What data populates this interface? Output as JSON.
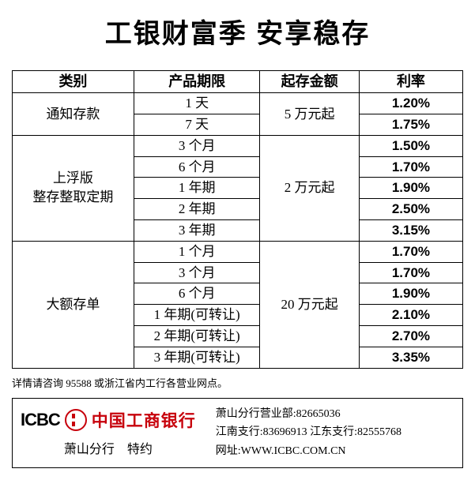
{
  "title": "工银财富季  安享稳存",
  "headers": [
    "类别",
    "产品期限",
    "起存金额",
    "利率"
  ],
  "groups": [
    {
      "category": "通知存款",
      "min_amount": "5 万元起",
      "rows": [
        {
          "term": "1 天",
          "rate": "1.20%"
        },
        {
          "term": "7 天",
          "rate": "1.75%"
        }
      ]
    },
    {
      "category": "上浮版\n整存整取定期",
      "min_amount": "2 万元起",
      "rows": [
        {
          "term": "3 个月",
          "rate": "1.50%"
        },
        {
          "term": "6 个月",
          "rate": "1.70%"
        },
        {
          "term": "1 年期",
          "rate": "1.90%"
        },
        {
          "term": "2 年期",
          "rate": "2.50%"
        },
        {
          "term": "3 年期",
          "rate": "3.15%"
        }
      ]
    },
    {
      "category": "大额存单",
      "min_amount": "20 万元起",
      "rows": [
        {
          "term": "1 个月",
          "rate": "1.70%"
        },
        {
          "term": "3 个月",
          "rate": "1.70%"
        },
        {
          "term": "6 个月",
          "rate": "1.90%"
        },
        {
          "term": "1 年期(可转让)",
          "rate": "2.10%"
        },
        {
          "term": "2 年期(可转让)",
          "rate": "2.70%"
        },
        {
          "term": "3 年期(可转让)",
          "rate": "3.35%"
        }
      ]
    }
  ],
  "note": "详情请咨询 95588 或浙江省内工行各营业网点。",
  "banner": {
    "icbc_en": "ICBC",
    "icbc_cn": "中国工商银行",
    "branch": "萧山分行　特约",
    "contacts": {
      "line1": "萧山分行营业部:82665036",
      "line2": "江南支行:83696913  江东支行:82555768",
      "line3": "网址:WWW.ICBC.COM.CN"
    },
    "logo_color": "#c7000b"
  }
}
